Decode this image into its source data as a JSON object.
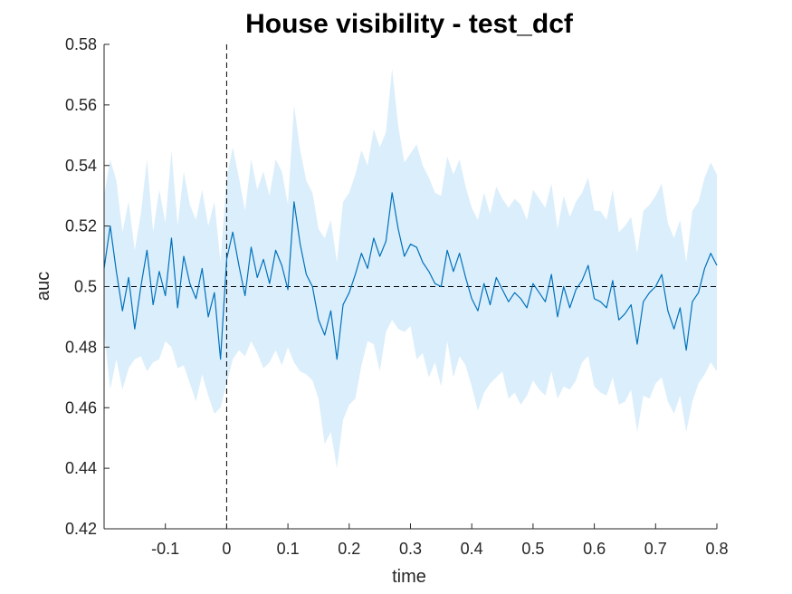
{
  "chart_data": {
    "type": "line",
    "title": "House visibility - test_dcf",
    "xlabel": "time",
    "ylabel": "auc",
    "xlim": [
      -0.2,
      0.8
    ],
    "ylim": [
      0.42,
      0.58
    ],
    "xticks": [
      -0.1,
      0,
      0.1,
      0.2,
      0.3,
      0.4,
      0.5,
      0.6,
      0.7,
      0.8
    ],
    "xtick_labels": [
      "-0.1",
      "0",
      "0.1",
      "0.2",
      "0.3",
      "0.4",
      "0.5",
      "0.6",
      "0.7",
      "0.8"
    ],
    "yticks": [
      0.42,
      0.44,
      0.46,
      0.48,
      0.5,
      0.52,
      0.54,
      0.56,
      0.58
    ],
    "ytick_labels": [
      "0.42",
      "0.44",
      "0.46",
      "0.48",
      "0.5",
      "0.52",
      "0.54",
      "0.56",
      "0.58"
    ],
    "reference_lines": {
      "horizontal_y": 0.5,
      "vertical_x": 0,
      "style": "dashed"
    },
    "grid": false,
    "legend": "none",
    "colors": {
      "line": "#0072BD",
      "band": "#dbeefb",
      "reference": "#000000"
    },
    "series": [
      {
        "x": [
          -0.2,
          -0.19,
          -0.18,
          -0.17,
          -0.16,
          -0.15,
          -0.14,
          -0.13,
          -0.12,
          -0.11,
          -0.1,
          -0.09,
          -0.08,
          -0.07,
          -0.06,
          -0.05,
          -0.04,
          -0.03,
          -0.02,
          -0.01,
          0,
          0.01,
          0.02,
          0.03,
          0.04,
          0.05,
          0.06,
          0.07,
          0.08,
          0.09,
          0.1,
          0.11,
          0.12,
          0.13,
          0.14,
          0.15,
          0.16,
          0.17,
          0.18,
          0.19,
          0.2,
          0.21,
          0.22,
          0.23,
          0.24,
          0.25,
          0.26,
          0.27,
          0.28,
          0.29,
          0.3,
          0.31,
          0.32,
          0.33,
          0.34,
          0.35,
          0.36,
          0.37,
          0.38,
          0.39,
          0.4,
          0.41,
          0.42,
          0.43,
          0.44,
          0.45,
          0.46,
          0.47,
          0.48,
          0.49,
          0.5,
          0.51,
          0.52,
          0.53,
          0.54,
          0.55,
          0.56,
          0.57,
          0.58,
          0.59,
          0.6,
          0.61,
          0.62,
          0.63,
          0.64,
          0.65,
          0.66,
          0.67,
          0.68,
          0.69,
          0.7,
          0.71,
          0.72,
          0.73,
          0.74,
          0.75,
          0.76,
          0.77,
          0.78,
          0.79,
          0.8
        ],
        "y": [
          0.506,
          0.52,
          0.505,
          0.492,
          0.503,
          0.486,
          0.5,
          0.512,
          0.494,
          0.505,
          0.497,
          0.516,
          0.493,
          0.51,
          0.501,
          0.496,
          0.506,
          0.49,
          0.498,
          0.476,
          0.509,
          0.518,
          0.507,
          0.497,
          0.513,
          0.503,
          0.509,
          0.501,
          0.512,
          0.507,
          0.499,
          0.528,
          0.514,
          0.504,
          0.5,
          0.489,
          0.484,
          0.492,
          0.476,
          0.494,
          0.498,
          0.504,
          0.511,
          0.506,
          0.516,
          0.51,
          0.515,
          0.531,
          0.519,
          0.51,
          0.514,
          0.513,
          0.508,
          0.505,
          0.501,
          0.5,
          0.512,
          0.505,
          0.511,
          0.503,
          0.496,
          0.492,
          0.501,
          0.494,
          0.503,
          0.499,
          0.495,
          0.498,
          0.496,
          0.493,
          0.501,
          0.498,
          0.495,
          0.504,
          0.49,
          0.5,
          0.493,
          0.499,
          0.502,
          0.507,
          0.496,
          0.495,
          0.493,
          0.502,
          0.489,
          0.491,
          0.494,
          0.481,
          0.495,
          0.498,
          0.5,
          0.504,
          0.492,
          0.486,
          0.493,
          0.479,
          0.495,
          0.498,
          0.506,
          0.511,
          0.507
        ],
        "lower": [
          0.485,
          0.466,
          0.476,
          0.466,
          0.473,
          0.476,
          0.477,
          0.472,
          0.475,
          0.476,
          0.482,
          0.48,
          0.473,
          0.474,
          0.468,
          0.462,
          0.471,
          0.464,
          0.458,
          0.46,
          0.468,
          0.476,
          0.479,
          0.477,
          0.482,
          0.478,
          0.473,
          0.475,
          0.479,
          0.474,
          0.48,
          0.475,
          0.472,
          0.471,
          0.469,
          0.463,
          0.448,
          0.452,
          0.44,
          0.456,
          0.461,
          0.463,
          0.474,
          0.482,
          0.481,
          0.472,
          0.485,
          0.489,
          0.486,
          0.485,
          0.487,
          0.476,
          0.478,
          0.47,
          0.475,
          0.467,
          0.482,
          0.47,
          0.477,
          0.474,
          0.467,
          0.459,
          0.465,
          0.468,
          0.47,
          0.472,
          0.463,
          0.465,
          0.461,
          0.464,
          0.469,
          0.466,
          0.464,
          0.472,
          0.463,
          0.467,
          0.466,
          0.469,
          0.475,
          0.477,
          0.467,
          0.465,
          0.464,
          0.47,
          0.461,
          0.462,
          0.466,
          0.452,
          0.464,
          0.463,
          0.468,
          0.47,
          0.462,
          0.458,
          0.464,
          0.452,
          0.462,
          0.468,
          0.471,
          0.475,
          0.472
        ],
        "upper": [
          0.53,
          0.542,
          0.535,
          0.518,
          0.528,
          0.512,
          0.524,
          0.542,
          0.518,
          0.532,
          0.521,
          0.545,
          0.52,
          0.538,
          0.527,
          0.522,
          0.532,
          0.52,
          0.528,
          0.508,
          0.536,
          0.546,
          0.536,
          0.525,
          0.542,
          0.532,
          0.538,
          0.53,
          0.542,
          0.538,
          0.527,
          0.56,
          0.545,
          0.535,
          0.531,
          0.519,
          0.516,
          0.522,
          0.508,
          0.528,
          0.531,
          0.537,
          0.545,
          0.54,
          0.552,
          0.546,
          0.551,
          0.572,
          0.553,
          0.541,
          0.544,
          0.547,
          0.54,
          0.536,
          0.531,
          0.53,
          0.543,
          0.537,
          0.542,
          0.533,
          0.526,
          0.522,
          0.531,
          0.524,
          0.533,
          0.529,
          0.526,
          0.529,
          0.527,
          0.522,
          0.532,
          0.529,
          0.526,
          0.534,
          0.519,
          0.53,
          0.523,
          0.528,
          0.531,
          0.536,
          0.525,
          0.525,
          0.522,
          0.532,
          0.518,
          0.52,
          0.523,
          0.511,
          0.525,
          0.527,
          0.53,
          0.534,
          0.521,
          0.516,
          0.522,
          0.508,
          0.525,
          0.528,
          0.536,
          0.541,
          0.537
        ]
      }
    ]
  }
}
